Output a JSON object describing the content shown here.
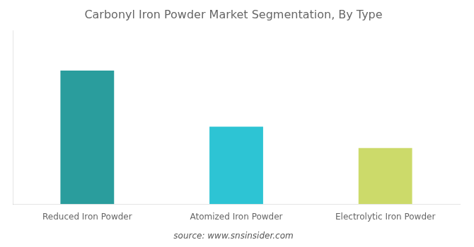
{
  "chart_data": {
    "type": "bar",
    "title": "Carbonyl Iron Powder Market Segmentation, By Type",
    "categories": [
      "Reduced Iron Powder",
      "Atomized Iron Powder",
      "Electrolytic Iron Powder"
    ],
    "values": [
      100,
      58,
      42
    ],
    "colors": [
      "#2A9D9D",
      "#2DC4D4",
      "#CCDA6A"
    ],
    "ylim": [
      0,
      130
    ],
    "tick_labels": "x",
    "grid": false,
    "annotations": [
      "source: www.snsinsider.com"
    ]
  }
}
